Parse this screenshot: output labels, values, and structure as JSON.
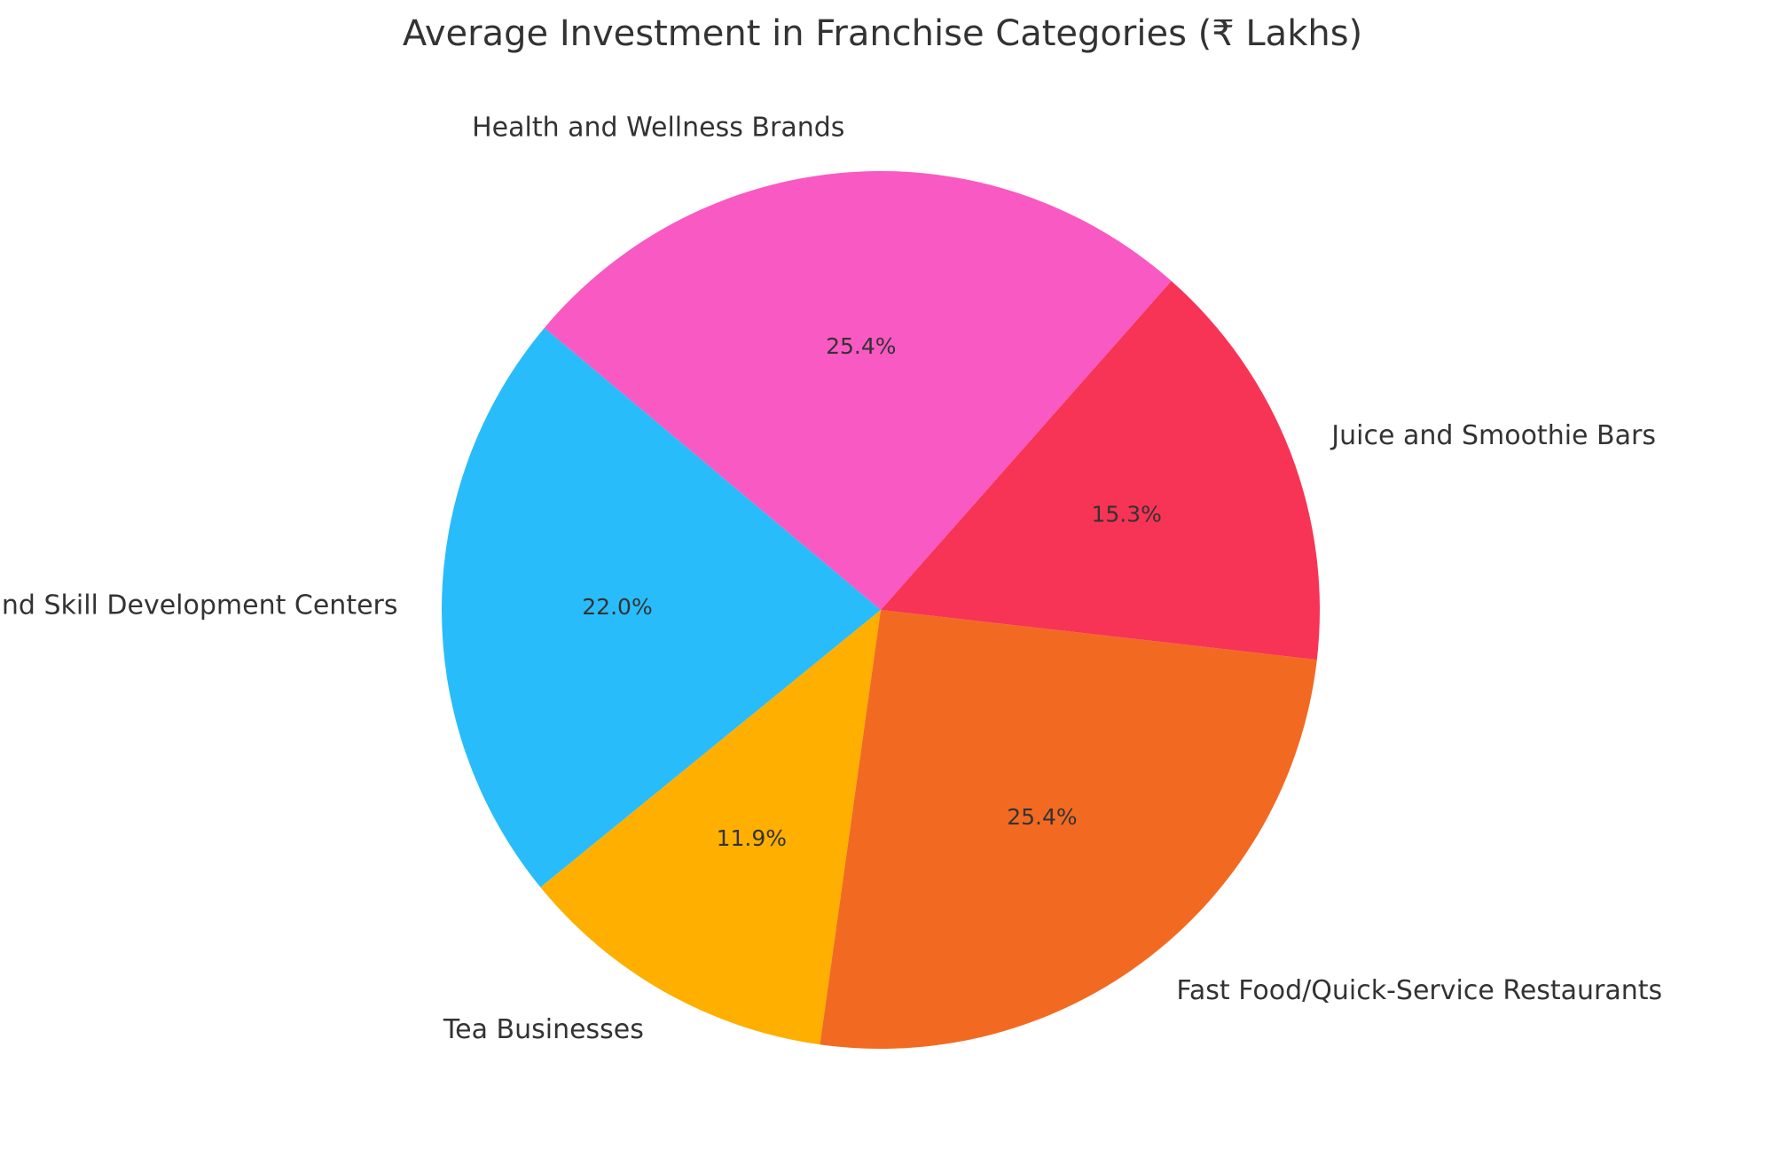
{
  "chart_data": {
    "type": "pie",
    "title": "Average Investment in Franchise Categories (₹ Lakhs)",
    "start_angle_deg": 140,
    "direction": "counterclockwise",
    "slices": [
      {
        "label": "Educational and Skill Development Centers",
        "value": 22.0,
        "pct_label": "22.0%",
        "color": "#29BCFB"
      },
      {
        "label": "Tea Businesses",
        "value": 11.9,
        "pct_label": "11.9%",
        "color": "#FEAF00"
      },
      {
        "label": "Fast Food/Quick-Service Restaurants",
        "value": 25.4,
        "pct_label": "25.4%",
        "color": "#F26A22"
      },
      {
        "label": "Juice and Smoothie Bars",
        "value": 15.3,
        "pct_label": "15.3%",
        "color": "#F73455"
      },
      {
        "label": "Health and Wellness Brands",
        "value": 25.4,
        "pct_label": "25.4%",
        "color": "#F959C2"
      }
    ]
  }
}
